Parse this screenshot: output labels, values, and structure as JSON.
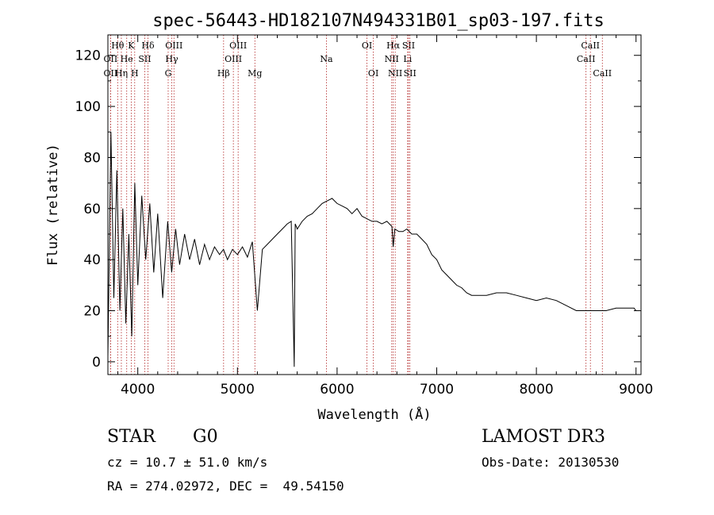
{
  "chart_data": {
    "type": "line",
    "title": "spec-56443-HD182107N494331B01_sp03-197.fits",
    "xlabel": "Wavelength (Å)",
    "ylabel": "Flux (relative)",
    "xlim": [
      3700,
      9050
    ],
    "ylim": [
      -5,
      128
    ],
    "xticks": [
      4000,
      5000,
      6000,
      7000,
      8000,
      9000
    ],
    "yticks": [
      0,
      20,
      40,
      60,
      80,
      100,
      120
    ],
    "grid": false,
    "series": [
      {
        "color": "#000000",
        "x": [
          3700,
          3730,
          3760,
          3790,
          3820,
          3850,
          3880,
          3910,
          3940,
          3970,
          4000,
          4040,
          4080,
          4120,
          4160,
          4200,
          4250,
          4300,
          4340,
          4380,
          4420,
          4470,
          4520,
          4570,
          4620,
          4670,
          4720,
          4770,
          4820,
          4860,
          4900,
          4950,
          5000,
          5050,
          5100,
          5150,
          5200,
          5250,
          5300,
          5350,
          5400,
          5450,
          5500,
          5540,
          5570,
          5580,
          5600,
          5650,
          5700,
          5750,
          5800,
          5850,
          5900,
          5950,
          6000,
          6050,
          6100,
          6150,
          6200,
          6250,
          6300,
          6350,
          6400,
          6450,
          6500,
          6550,
          6563,
          6580,
          6620,
          6660,
          6700,
          6750,
          6800,
          6850,
          6900,
          6950,
          7000,
          7050,
          7100,
          7150,
          7200,
          7250,
          7300,
          7350,
          7400,
          7450,
          7500,
          7600,
          7700,
          7800,
          7900,
          8000,
          8100,
          8200,
          8300,
          8400,
          8500,
          8600,
          8700,
          8800,
          8900,
          8980,
          9000
        ],
        "y": [
          2,
          90,
          25,
          75,
          20,
          60,
          15,
          50,
          10,
          70,
          30,
          65,
          40,
          62,
          35,
          58,
          25,
          55,
          35,
          52,
          38,
          50,
          40,
          48,
          38,
          46,
          40,
          45,
          42,
          44,
          40,
          44,
          42,
          45,
          41,
          47,
          20,
          44,
          46,
          48,
          50,
          52,
          54,
          55,
          -2,
          54,
          52,
          55,
          57,
          58,
          60,
          62,
          63,
          64,
          62,
          61,
          60,
          58,
          60,
          57,
          56,
          55,
          55,
          54,
          55,
          53,
          45,
          52,
          51,
          51,
          52,
          50,
          50,
          48,
          46,
          42,
          40,
          36,
          34,
          32,
          30,
          29,
          27,
          26,
          26,
          26,
          26,
          27,
          27,
          26,
          25,
          24,
          25,
          24,
          22,
          20,
          20,
          20,
          20,
          21,
          21,
          21,
          20
        ]
      }
    ],
    "lines": [
      {
        "label": "Hθ",
        "x": 3798,
        "row": 1
      },
      {
        "label": "OII",
        "x": 3727,
        "row": 2
      },
      {
        "label": "OII",
        "x": 3727,
        "row": 3
      },
      {
        "label": "He",
        "x": 3889,
        "row": 2
      },
      {
        "label": "Hη",
        "x": 3835,
        "row": 3
      },
      {
        "label": "K",
        "x": 3934,
        "row": 1
      },
      {
        "label": "SII",
        "x": 4070,
        "row": 2
      },
      {
        "label": "H",
        "x": 3969,
        "row": 3
      },
      {
        "label": "Hδ",
        "x": 4102,
        "row": 1
      },
      {
        "label": "OIII",
        "x": 4363,
        "row": 1
      },
      {
        "label": "Hγ",
        "x": 4341,
        "row": 2
      },
      {
        "label": "G",
        "x": 4305,
        "row": 3
      },
      {
        "label": "OIII",
        "x": 5007,
        "row": 1
      },
      {
        "label": "OIII",
        "x": 4959,
        "row": 2
      },
      {
        "label": "Hβ",
        "x": 4861,
        "row": 3
      },
      {
        "label": "Mg",
        "x": 5175,
        "row": 3
      },
      {
        "label": "Na",
        "x": 5893,
        "row": 2
      },
      {
        "label": "OI",
        "x": 6300,
        "row": 1
      },
      {
        "label": "OI",
        "x": 6364,
        "row": 3
      },
      {
        "label": "Hα",
        "x": 6563,
        "row": 1
      },
      {
        "label": "NII",
        "x": 6548,
        "row": 2
      },
      {
        "label": "NII",
        "x": 6583,
        "row": 3
      },
      {
        "label": "SII",
        "x": 6717,
        "row": 1
      },
      {
        "label": "Li",
        "x": 6708,
        "row": 2
      },
      {
        "label": "SII",
        "x": 6731,
        "row": 3
      },
      {
        "label": "CaII",
        "x": 8542,
        "row": 1
      },
      {
        "label": "CaII",
        "x": 8498,
        "row": 2
      },
      {
        "label": "CaII",
        "x": 8662,
        "row": 3
      }
    ]
  },
  "info": {
    "class_label": "STAR",
    "subclass": "G0",
    "survey": "LAMOST DR3",
    "redshift": "cz = 10.7 ± 51.0 km/s",
    "obs_date": "Obs-Date: 20130530",
    "coords": "RA = 274.02972, DEC =  49.54150"
  }
}
